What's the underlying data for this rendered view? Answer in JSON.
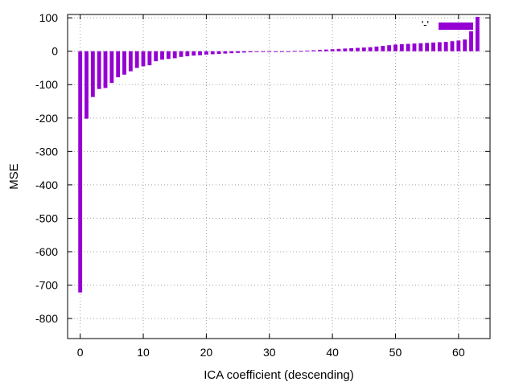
{
  "chart_data": {
    "type": "bar",
    "title": "",
    "xlabel": "ICA coefficient (descending)",
    "ylabel": "MSE",
    "xlim": [
      -2,
      65
    ],
    "ylim": [
      -860,
      110
    ],
    "xticks": [
      0,
      10,
      20,
      30,
      40,
      50,
      60
    ],
    "yticks": [
      100,
      0,
      -100,
      -200,
      -300,
      -400,
      -500,
      -600,
      -700,
      -800
    ],
    "grid": true,
    "legend_position": "top-right",
    "color": "#9400d3",
    "series": [
      {
        "name": "'-'",
        "x": [
          0,
          1,
          2,
          3,
          4,
          5,
          6,
          7,
          8,
          9,
          10,
          11,
          12,
          13,
          14,
          15,
          16,
          17,
          18,
          19,
          20,
          21,
          22,
          23,
          24,
          25,
          26,
          27,
          28,
          29,
          30,
          31,
          32,
          33,
          34,
          35,
          36,
          37,
          38,
          39,
          40,
          41,
          42,
          43,
          44,
          45,
          46,
          47,
          48,
          49,
          50,
          51,
          52,
          53,
          54,
          55,
          56,
          57,
          58,
          59,
          60,
          61,
          62,
          63
        ],
        "values": [
          -722,
          -202,
          -137,
          -113,
          -110,
          -95,
          -78,
          -70,
          -60,
          -50,
          -45,
          -42,
          -30,
          -25,
          -23,
          -21,
          -17,
          -15,
          -13,
          -12,
          -10,
          -9,
          -8,
          -7,
          -6,
          -5,
          -4,
          -3,
          -2,
          -2,
          -1,
          -1,
          0,
          0,
          1,
          1,
          2,
          3,
          4,
          5,
          6,
          7,
          8,
          9,
          10,
          11,
          12,
          14,
          16,
          18,
          20,
          21,
          22,
          23,
          24,
          25,
          26,
          27,
          28,
          30,
          32,
          35,
          60,
          103
        ]
      }
    ]
  }
}
